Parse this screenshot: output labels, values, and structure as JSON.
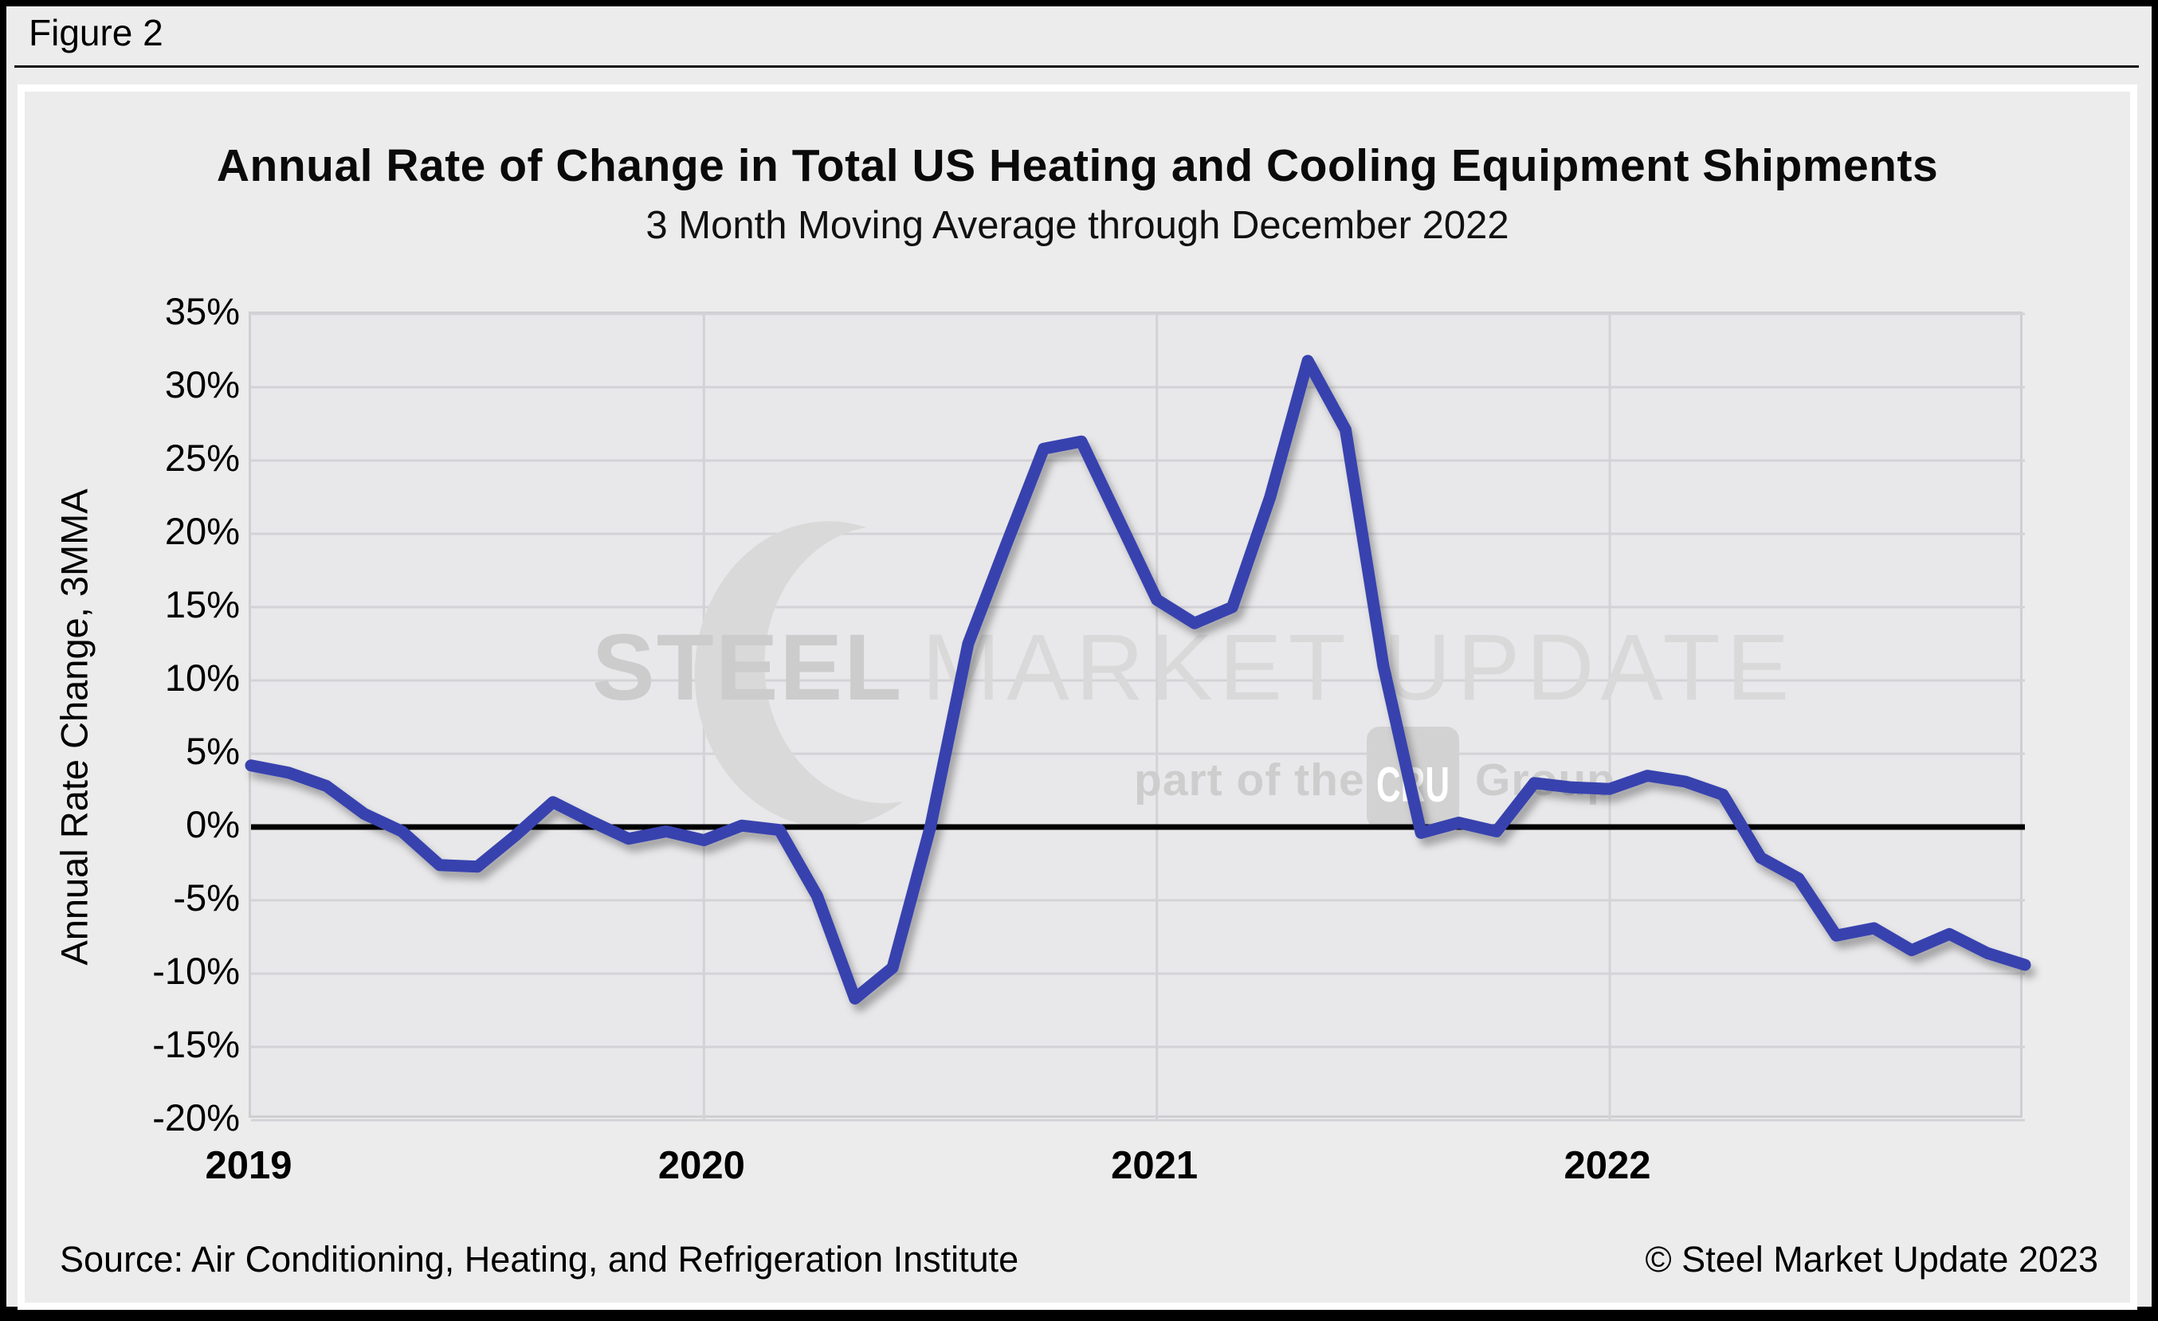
{
  "figure_label": "Figure 2",
  "title": "Annual Rate of Change in Total US Heating and Cooling Equipment Shipments",
  "subtitle": "3 Month Moving Average through December 2022",
  "y_axis_title": "Annual Rate Change, 3MMA",
  "footer": {
    "source": "Source: Air Conditioning, Heating, and Refrigeration Institute",
    "copyright": "© Steel Market Update 2023"
  },
  "watermark": {
    "word1": "STEEL",
    "word2": "MARKET UPDATE",
    "tagline_prefix": "part of the",
    "tagline_box": "CRU",
    "tagline_suffix": "Group"
  },
  "colors": {
    "line": "#3742ae",
    "zero_line": "#000000",
    "grid": "#d3d3d7",
    "plot_bg": "#e8e8ea",
    "page_bg": "#ececec",
    "watermark_dark": "#cfcfcf",
    "watermark_light": "#d9d9d9"
  },
  "chart_data": {
    "type": "line",
    "title": "Annual Rate of Change in Total US Heating and Cooling Equipment Shipments",
    "subtitle": "3 Month Moving Average through December 2022",
    "ylabel": "Annual Rate Change, 3MMA",
    "xlabel": "",
    "ylim": [
      -20,
      35
    ],
    "ytick_step": 5,
    "ytick_labels": [
      "35%",
      "30%",
      "25%",
      "20%",
      "15%",
      "10%",
      "5%",
      "0%",
      "-5%",
      "-10%",
      "-15%",
      "-20%"
    ],
    "xtick_labels": [
      "2019",
      "2020",
      "2021",
      "2022"
    ],
    "xtick_month_index": [
      0,
      12,
      24,
      36
    ],
    "grid": true,
    "legend": "none",
    "months": [
      "Jan 2019",
      "Feb 2019",
      "Mar 2019",
      "Apr 2019",
      "May 2019",
      "Jun 2019",
      "Jul 2019",
      "Aug 2019",
      "Sep 2019",
      "Oct 2019",
      "Nov 2019",
      "Dec 2019",
      "Jan 2020",
      "Feb 2020",
      "Mar 2020",
      "Apr 2020",
      "May 2020",
      "Jun 2020",
      "Jul 2020",
      "Aug 2020",
      "Sep 2020",
      "Oct 2020",
      "Nov 2020",
      "Dec 2020",
      "Jan 2021",
      "Feb 2021",
      "Mar 2021",
      "Apr 2021",
      "May 2021",
      "Jun 2021",
      "Jul 2021",
      "Aug 2021",
      "Sep 2021",
      "Oct 2021",
      "Nov 2021",
      "Dec 2021",
      "Jan 2022",
      "Feb 2022",
      "Mar 2022",
      "Apr 2022",
      "May 2022",
      "Jun 2022",
      "Jul 2022",
      "Aug 2022",
      "Sep 2022",
      "Oct 2022",
      "Nov 2022",
      "Dec 2022"
    ],
    "values": [
      4.2,
      3.7,
      2.8,
      0.9,
      -0.3,
      -2.6,
      -2.7,
      -0.6,
      1.7,
      0.4,
      -0.8,
      -0.3,
      -0.9,
      0.1,
      -0.2,
      -4.7,
      -11.7,
      -9.6,
      0.0,
      12.5,
      19.2,
      25.8,
      26.3,
      20.9,
      15.5,
      13.9,
      15.0,
      22.5,
      31.8,
      27.1,
      11.0,
      -0.4,
      0.3,
      -0.3,
      3.0,
      2.7,
      2.6,
      3.5,
      3.1,
      2.2,
      -2.1,
      -3.5,
      -7.4,
      -6.9,
      -8.4,
      -7.3,
      -8.6,
      -9.4
    ]
  }
}
